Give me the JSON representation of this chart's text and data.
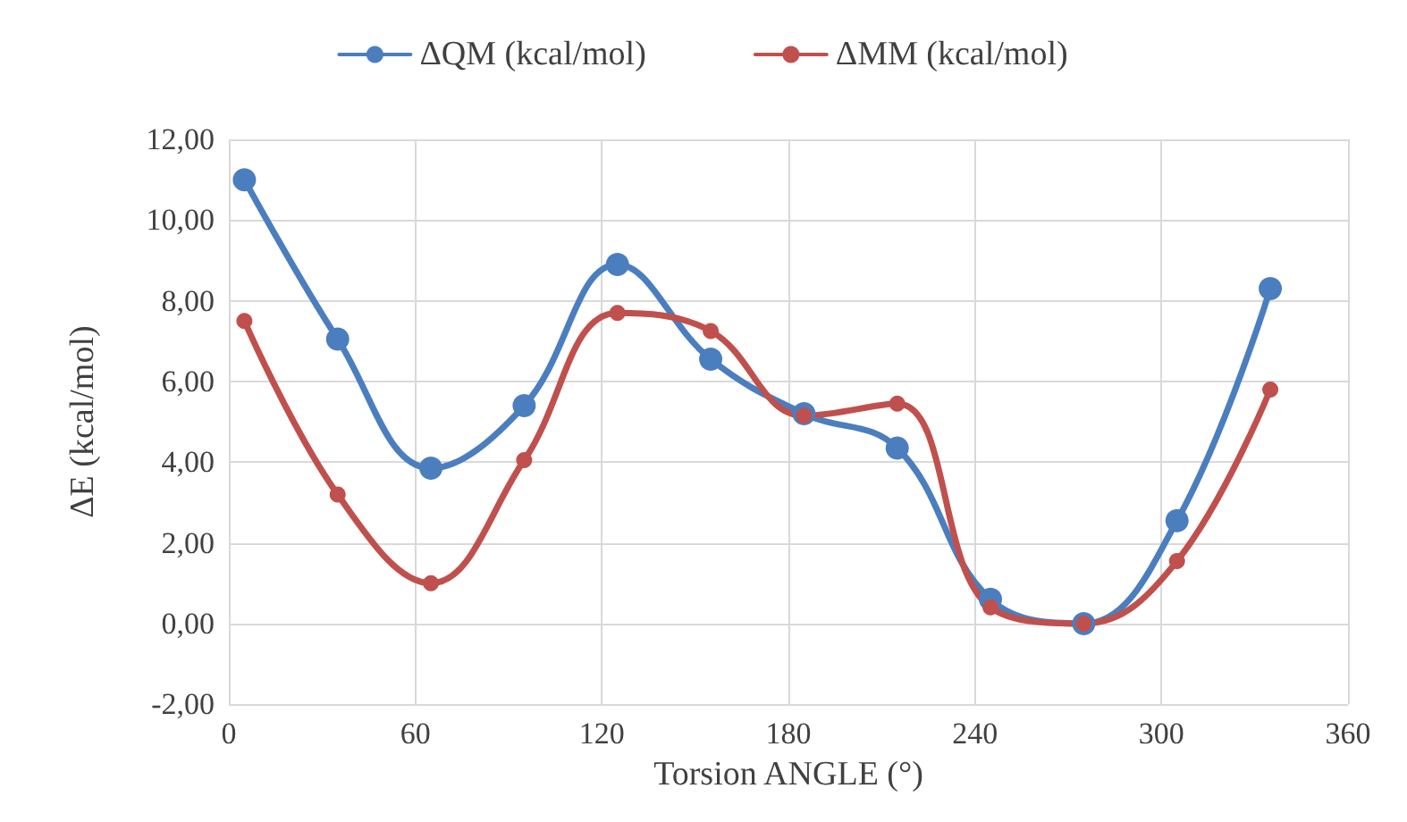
{
  "chart_data": {
    "type": "line",
    "xlabel": "Torsion ANGLE (°)",
    "ylabel": "ΔE (kcal/mol)",
    "x": [
      5,
      35,
      65,
      95,
      125,
      155,
      185,
      215,
      245,
      275,
      305,
      335
    ],
    "series": [
      {
        "name": "ΔQM (kcal/mol)",
        "color": "#4a7ebf",
        "values": [
          11.0,
          7.05,
          3.85,
          5.4,
          8.9,
          6.55,
          5.2,
          4.35,
          0.6,
          0.0,
          2.55,
          8.3
        ]
      },
      {
        "name": "ΔMM (kcal/mol)",
        "color": "#c0504d",
        "values": [
          7.5,
          3.2,
          1.0,
          4.05,
          7.7,
          7.25,
          5.15,
          5.45,
          0.4,
          0.0,
          1.55,
          5.8
        ]
      }
    ],
    "xlim": [
      0,
      360
    ],
    "xticks": [
      0,
      60,
      120,
      180,
      240,
      300,
      360
    ],
    "ylim": [
      -2,
      12
    ],
    "yticks": [
      {
        "value": -2,
        "label": "-2,00"
      },
      {
        "value": 0,
        "label": "0,00"
      },
      {
        "value": 2,
        "label": "2,00"
      },
      {
        "value": 4,
        "label": "4,00"
      },
      {
        "value": 6,
        "label": "6,00"
      },
      {
        "value": 8,
        "label": "8,00"
      },
      {
        "value": 10,
        "label": "10,00"
      },
      {
        "value": 12,
        "label": "12,00"
      }
    ],
    "grid": true,
    "legend": "top",
    "marker": "circle",
    "line_style": "solid"
  }
}
